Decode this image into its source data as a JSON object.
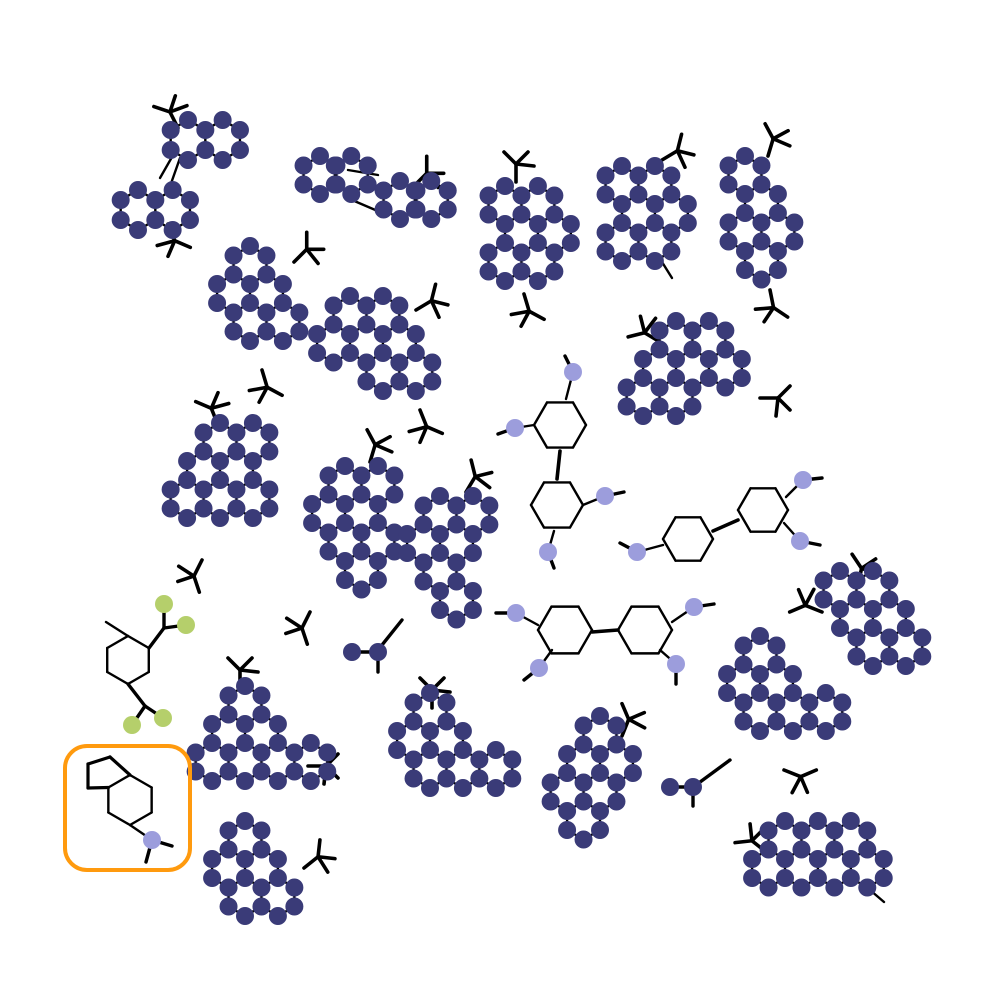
{
  "colors": {
    "background": "#ffffff",
    "bond": "#000000",
    "atom_dark": "#3a3b78",
    "atom_light": "#9c9ddc",
    "atom_green": "#b5cf6b",
    "highlight": "#ff9a0e"
  },
  "molecules": [
    {
      "kind": "aromatic-cluster",
      "rings": 4
    },
    {
      "kind": "aromatic-cluster",
      "rings": 3
    },
    {
      "kind": "aromatic-cluster",
      "rings": 5
    },
    {
      "kind": "aromatic-cluster",
      "rings": 5
    },
    {
      "kind": "aromatic-cluster",
      "rings": 4
    },
    {
      "kind": "aromatic-cluster",
      "rings": 5
    },
    {
      "kind": "aromatic-cluster",
      "rings": 6
    },
    {
      "kind": "aromatic-cluster",
      "rings": 4
    },
    {
      "kind": "aromatic-cluster",
      "rings": 4
    },
    {
      "kind": "aromatic-cluster",
      "rings": 4
    },
    {
      "kind": "aromatic-cluster",
      "rings": 4
    },
    {
      "kind": "biphenyl-tetra-substituted",
      "rings": 2
    },
    {
      "kind": "biphenyl-tetra-substituted",
      "rings": 2
    },
    {
      "kind": "biphenyl-tetra-substituted",
      "rings": 2
    },
    {
      "kind": "aromatic-cluster",
      "rings": 4
    },
    {
      "kind": "aromatic-cluster",
      "rings": 5
    },
    {
      "kind": "cyclohexane-disubstituted",
      "rings": 1
    },
    {
      "kind": "aromatic-cluster",
      "rings": 5
    },
    {
      "kind": "aromatic-cluster",
      "rings": 4
    },
    {
      "kind": "aromatic-cluster",
      "rings": 4
    },
    {
      "kind": "aromatic-cluster",
      "rings": 6
    },
    {
      "kind": "aromatic-cluster",
      "rings": 4
    },
    {
      "kind": "aromatic-cluster",
      "rings": 4
    },
    {
      "kind": "indane-fused-highlighted",
      "rings": 2
    }
  ]
}
